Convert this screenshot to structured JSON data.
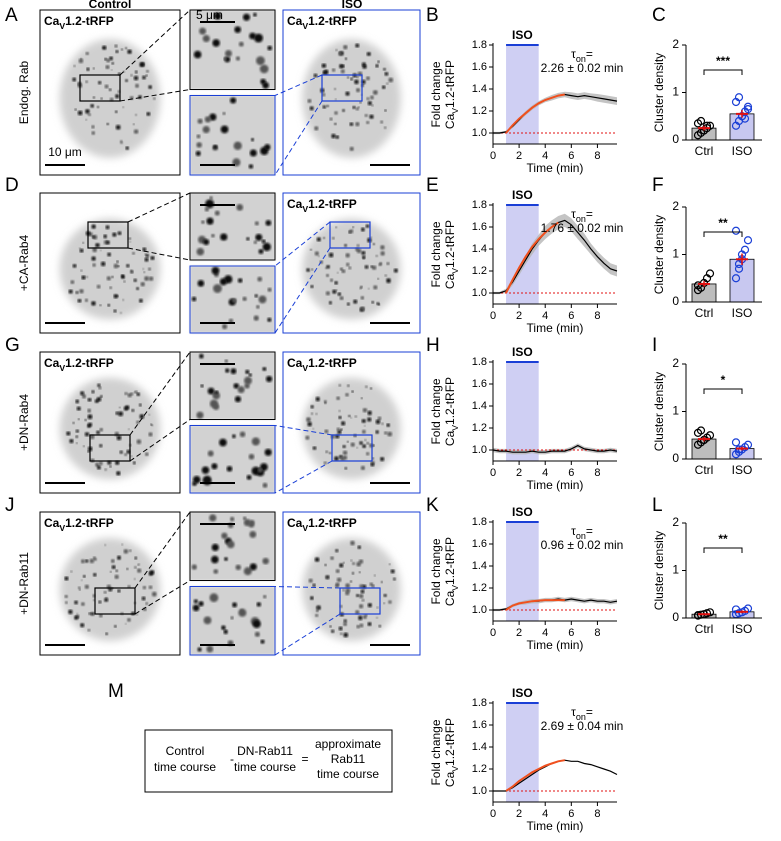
{
  "panel_letters": [
    "A",
    "B",
    "C",
    "D",
    "E",
    "F",
    "G",
    "H",
    "I",
    "J",
    "K",
    "L",
    "M"
  ],
  "column_headers": [
    "Control",
    "ISO"
  ],
  "row_labels": [
    "Endog. Rab",
    "+CA-Rab4",
    "+DN-Rab4",
    "+DN-Rab11"
  ],
  "image_label": {
    "main": "Ca",
    "sub": "V",
    "rest": "1.2-tRFP"
  },
  "scale_bars": [
    "10 μm",
    "5 μm"
  ],
  "equation": [
    "Control",
    "time course",
    "-",
    "DN-Rab11",
    "time course",
    "=",
    "approximate",
    "Rab11",
    "time course"
  ],
  "chart_data": [
    {
      "type": "line",
      "ylabel": "Fold change",
      "ylabel2": {
        "main": "Ca",
        "sub": "V",
        "rest": "1.2-tRFP"
      },
      "xlabel": "Time (min)",
      "xlim": [
        0,
        9.5
      ],
      "ylim": [
        0.9,
        1.8
      ],
      "xticks": [
        0,
        2,
        4,
        6,
        8
      ],
      "yticks": [
        {
          "value": 1,
          "label": "1.0"
        },
        1.2,
        1.4,
        1.6,
        1.8
      ],
      "shade": {
        "range": [
          1,
          3.5
        ],
        "label": "ISO"
      },
      "baseline": 1,
      "annotation": {
        "symbol": "τ",
        "sub": "on",
        "eq": "=",
        "value": "2.26 ± 0.02 min"
      },
      "series": [
        {
          "color": "#000000",
          "x": [
            0,
            0.5,
            1,
            1.5,
            2,
            2.5,
            3,
            3.5,
            4,
            4.5,
            5,
            5.5,
            6,
            6.5,
            7,
            7.5,
            8,
            8.5,
            9,
            9.5
          ],
          "values": [
            1.0,
            1.0,
            1.01,
            1.06,
            1.12,
            1.18,
            1.23,
            1.27,
            1.3,
            1.32,
            1.34,
            1.35,
            1.34,
            1.33,
            1.34,
            1.33,
            1.32,
            1.31,
            1.3,
            1.29
          ],
          "error": [
            0.01,
            0.01,
            0.01,
            0.015,
            0.015,
            0.02,
            0.02,
            0.02,
            0.02,
            0.025,
            0.025,
            0.025,
            0.03,
            0.03,
            0.03,
            0.03,
            0.035,
            0.035,
            0.035,
            0.035
          ]
        },
        {
          "color": "#f0501e",
          "x": [
            1,
            1.5,
            2,
            2.5,
            3,
            3.5,
            4,
            4.5,
            5,
            5.5
          ],
          "values": [
            1.0,
            1.07,
            1.13,
            1.18,
            1.23,
            1.27,
            1.3,
            1.32,
            1.34,
            1.35
          ]
        }
      ]
    },
    {
      "type": "bar",
      "ylabel": "Cluster density",
      "ylim": [
        0,
        2
      ],
      "yticks": [
        0,
        1,
        2
      ],
      "categories": [
        "Ctrl",
        "ISO"
      ],
      "colors": [
        "#000000",
        "#1a3fd6"
      ],
      "fills": [
        "#bdbdbd",
        "#c8c8f0"
      ],
      "values": [
        0.25,
        0.55
      ],
      "error": [
        0.05,
        0.08
      ],
      "points": [
        [
          0.1,
          0.15,
          0.2,
          0.25,
          0.3,
          0.35,
          0.4,
          0.2,
          0.3
        ],
        [
          0.3,
          0.4,
          0.5,
          0.6,
          0.7,
          0.8,
          0.9,
          0.5,
          0.45,
          0.65
        ]
      ],
      "significance": "***"
    },
    {
      "type": "line",
      "ylabel": "Fold change",
      "ylabel2": {
        "main": "Ca",
        "sub": "V",
        "rest": "1.2-tRFP"
      },
      "xlabel": "Time (min)",
      "xlim": [
        0,
        9.5
      ],
      "ylim": [
        0.9,
        1.8
      ],
      "xticks": [
        0,
        2,
        4,
        6,
        8
      ],
      "yticks": [
        {
          "value": 1,
          "label": "1.0"
        },
        1.2,
        1.4,
        1.6,
        1.8
      ],
      "shade": {
        "range": [
          1,
          3.5
        ],
        "label": "ISO"
      },
      "baseline": 1,
      "annotation": {
        "symbol": "τ",
        "sub": "on",
        "eq": "=",
        "value": "1.76 ± 0.02 min"
      },
      "series": [
        {
          "color": "#000000",
          "x": [
            0,
            0.5,
            1,
            1.5,
            2,
            2.5,
            3,
            3.5,
            4,
            4.5,
            5,
            5.5,
            6,
            6.5,
            7,
            7.5,
            8,
            8.5,
            9,
            9.5
          ],
          "values": [
            1.0,
            1.0,
            1.02,
            1.1,
            1.2,
            1.3,
            1.4,
            1.48,
            1.55,
            1.6,
            1.64,
            1.66,
            1.62,
            1.55,
            1.48,
            1.4,
            1.33,
            1.27,
            1.22,
            1.2
          ],
          "error": [
            0.01,
            0.01,
            0.02,
            0.03,
            0.04,
            0.04,
            0.05,
            0.05,
            0.06,
            0.06,
            0.06,
            0.06,
            0.06,
            0.06,
            0.06,
            0.05,
            0.05,
            0.05,
            0.05,
            0.05
          ]
        },
        {
          "color": "#f0501e",
          "x": [
            1,
            1.5,
            2,
            2.5,
            3,
            3.5,
            4,
            4.5,
            5
          ],
          "values": [
            1.0,
            1.12,
            1.23,
            1.33,
            1.42,
            1.49,
            1.55,
            1.6,
            1.64
          ]
        }
      ]
    },
    {
      "type": "bar",
      "ylabel": "Cluster density",
      "ylim": [
        0,
        2
      ],
      "yticks": [
        0,
        1,
        2
      ],
      "categories": [
        "Ctrl",
        "ISO"
      ],
      "colors": [
        "#000000",
        "#1a3fd6"
      ],
      "fills": [
        "#bdbdbd",
        "#c8c8f0"
      ],
      "values": [
        0.38,
        0.9
      ],
      "error": [
        0.06,
        0.12
      ],
      "points": [
        [
          0.25,
          0.3,
          0.4,
          0.5,
          0.6,
          0.35
        ],
        [
          0.5,
          0.7,
          0.9,
          1.1,
          1.3,
          1.5,
          0.8,
          1.0
        ]
      ],
      "significance": "**"
    },
    {
      "type": "line",
      "ylabel": "Fold change",
      "ylabel2": {
        "main": "Ca",
        "sub": "V",
        "rest": "1.2-tRFP"
      },
      "xlabel": "Time (min)",
      "xlim": [
        0,
        9.5
      ],
      "ylim": [
        0.9,
        1.8
      ],
      "xticks": [
        0,
        2,
        4,
        6,
        8
      ],
      "yticks": [
        {
          "value": 1,
          "label": "1.0"
        },
        1.2,
        1.4,
        1.6,
        1.8
      ],
      "shade": {
        "range": [
          1,
          3.5
        ],
        "label": "ISO"
      },
      "baseline": 1,
      "series": [
        {
          "color": "#000000",
          "x": [
            0,
            0.5,
            1,
            1.5,
            2,
            2.5,
            3,
            3.5,
            4,
            4.5,
            5,
            5.5,
            6,
            6.5,
            7,
            7.5,
            8,
            8.5,
            9,
            9.5
          ],
          "values": [
            1.0,
            0.99,
            0.99,
            0.98,
            0.98,
            0.98,
            0.99,
            0.98,
            0.98,
            0.99,
            0.99,
            0.99,
            1.01,
            1.04,
            1.01,
            1.0,
            0.99,
            0.99,
            1.0,
            0.99
          ],
          "error": [
            0.02,
            0.02,
            0.02,
            0.02,
            0.02,
            0.02,
            0.02,
            0.02,
            0.02,
            0.02,
            0.02,
            0.02,
            0.02,
            0.02,
            0.02,
            0.02,
            0.02,
            0.02,
            0.02,
            0.02
          ]
        }
      ]
    },
    {
      "type": "bar",
      "ylabel": "Cluster density",
      "ylim": [
        0,
        2
      ],
      "yticks": [
        0,
        1,
        2
      ],
      "categories": [
        "Ctrl",
        "ISO"
      ],
      "colors": [
        "#000000",
        "#1a3fd6"
      ],
      "fills": [
        "#bdbdbd",
        "#c8c8f0"
      ],
      "values": [
        0.42,
        0.22
      ],
      "error": [
        0.05,
        0.04
      ],
      "points": [
        [
          0.3,
          0.35,
          0.4,
          0.45,
          0.5,
          0.55,
          0.6,
          0.4
        ],
        [
          0.1,
          0.15,
          0.2,
          0.25,
          0.3,
          0.35,
          0.2
        ]
      ],
      "significance": "*"
    },
    {
      "type": "line",
      "ylabel": "Fold change",
      "ylabel2": {
        "main": "Ca",
        "sub": "V",
        "rest": "1.2-tRFP"
      },
      "xlabel": "Time (min)",
      "xlim": [
        0,
        9.5
      ],
      "ylim": [
        0.9,
        1.8
      ],
      "xticks": [
        0,
        2,
        4,
        6,
        8
      ],
      "yticks": [
        {
          "value": 1,
          "label": "1.0"
        },
        1.2,
        1.4,
        1.6,
        1.8
      ],
      "shade": {
        "range": [
          1,
          3.5
        ],
        "label": "ISO"
      },
      "baseline": 1,
      "annotation": {
        "symbol": "τ",
        "sub": "on",
        "eq": "=",
        "value": "0.96 ± 0.02 min"
      },
      "series": [
        {
          "color": "#000000",
          "x": [
            0,
            0.5,
            1,
            1.5,
            2,
            2.5,
            3,
            3.5,
            4,
            4.5,
            5,
            5.5,
            6,
            6.5,
            7,
            7.5,
            8,
            8.5,
            9,
            9.5
          ],
          "values": [
            1.0,
            1.0,
            1.01,
            1.04,
            1.06,
            1.07,
            1.08,
            1.08,
            1.09,
            1.09,
            1.1,
            1.09,
            1.1,
            1.09,
            1.08,
            1.09,
            1.08,
            1.08,
            1.07,
            1.08
          ],
          "error": [
            0.01,
            0.01,
            0.01,
            0.015,
            0.015,
            0.02,
            0.02,
            0.02,
            0.02,
            0.02,
            0.02,
            0.02,
            0.02,
            0.02,
            0.02,
            0.02,
            0.02,
            0.02,
            0.02,
            0.02
          ]
        },
        {
          "color": "#f0501e",
          "x": [
            1,
            1.5,
            2,
            2.5,
            3,
            3.5,
            4,
            4.5,
            5,
            5.5
          ],
          "values": [
            1.0,
            1.04,
            1.06,
            1.07,
            1.08,
            1.085,
            1.09,
            1.09,
            1.09,
            1.09
          ]
        }
      ]
    },
    {
      "type": "bar",
      "ylabel": "Cluster density",
      "ylim": [
        0,
        2
      ],
      "yticks": [
        0,
        1,
        2
      ],
      "categories": [
        "Ctrl",
        "ISO"
      ],
      "colors": [
        "#000000",
        "#1a3fd6"
      ],
      "fills": [
        "#bdbdbd",
        "#c8c8f0"
      ],
      "values": [
        0.08,
        0.13
      ],
      "error": [
        0.02,
        0.03
      ],
      "points": [
        [
          0.05,
          0.07,
          0.08,
          0.1,
          0.12,
          0.06
        ],
        [
          0.08,
          0.1,
          0.12,
          0.15,
          0.2,
          0.18
        ]
      ],
      "significance": "**"
    },
    {
      "type": "line",
      "ylabel": "Fold change",
      "ylabel2": {
        "main": "Ca",
        "sub": "V",
        "rest": "1.2-tRFP"
      },
      "xlabel": "Time (min)",
      "xlim": [
        0,
        9.5
      ],
      "ylim": [
        0.9,
        1.8
      ],
      "xticks": [
        0,
        2,
        4,
        6,
        8
      ],
      "yticks": [
        {
          "value": 1,
          "label": "1.0"
        },
        1.2,
        1.4,
        1.6,
        1.8
      ],
      "shade": {
        "range": [
          1,
          3.5
        ],
        "label": "ISO"
      },
      "baseline": 1,
      "annotation": {
        "symbol": "τ",
        "sub": "on",
        "eq": "=",
        "value": "2.69 ± 0.04 min"
      },
      "series": [
        {
          "color": "#000000",
          "x": [
            0,
            0.5,
            1,
            1.5,
            2,
            2.5,
            3,
            3.5,
            4,
            4.5,
            5,
            5.5,
            6,
            6.5,
            7,
            7.5,
            8,
            8.5,
            9,
            9.5
          ],
          "values": [
            1.0,
            1.0,
            1.0,
            1.03,
            1.07,
            1.11,
            1.15,
            1.19,
            1.22,
            1.25,
            1.27,
            1.28,
            1.27,
            1.27,
            1.25,
            1.24,
            1.22,
            1.2,
            1.18,
            1.15
          ]
        },
        {
          "color": "#f0501e",
          "x": [
            1,
            1.5,
            2,
            2.5,
            3,
            3.5,
            4,
            4.5,
            5,
            5.5
          ],
          "values": [
            1.0,
            1.04,
            1.09,
            1.13,
            1.17,
            1.2,
            1.23,
            1.25,
            1.27,
            1.28
          ]
        }
      ]
    }
  ]
}
